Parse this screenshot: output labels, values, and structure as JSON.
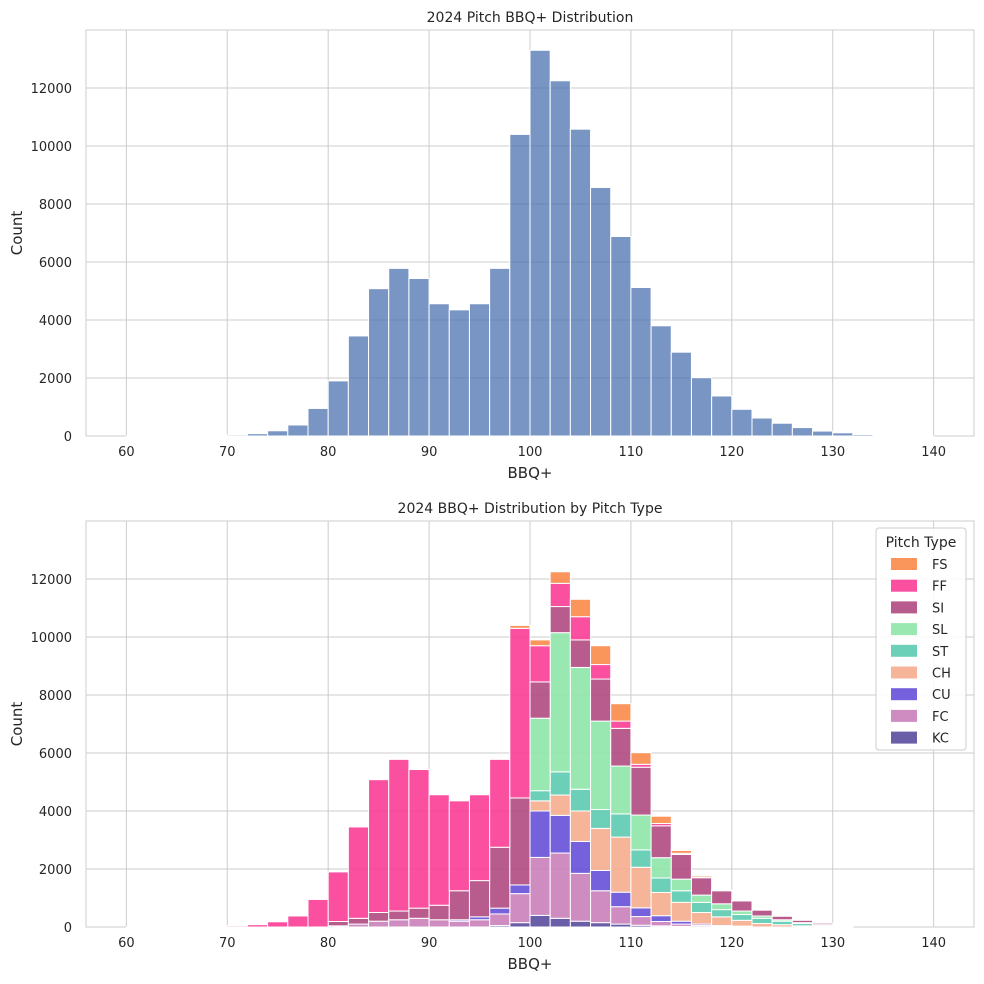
{
  "chart_data": [
    {
      "type": "bar",
      "title": "2024 Pitch BBQ+ Distribution",
      "xlabel": "BBQ+",
      "ylabel": "Count",
      "xlim": [
        56,
        144
      ],
      "ylim": [
        0,
        14000
      ],
      "xticks": [
        "60",
        "70",
        "80",
        "90",
        "100",
        "110",
        "120",
        "130",
        "140"
      ],
      "yticks": [
        "0",
        "2000",
        "4000",
        "6000",
        "8000",
        "10000",
        "12000"
      ],
      "grid": true,
      "color": "#4c72b0",
      "bin_edges": [
        60,
        62,
        64,
        66,
        68,
        70,
        72,
        74,
        76,
        78,
        80,
        82,
        84,
        86,
        88,
        90,
        92,
        94,
        96,
        98,
        100,
        102,
        104,
        106,
        108,
        110,
        112,
        114,
        116,
        118,
        120,
        122,
        124,
        126,
        128,
        130,
        132,
        134,
        136,
        138,
        140
      ],
      "values": [
        5,
        5,
        10,
        15,
        20,
        40,
        80,
        180,
        380,
        950,
        1900,
        3450,
        5080,
        5780,
        5430,
        4560,
        4350,
        4560,
        5780,
        10400,
        13300,
        12250,
        10580,
        8570,
        6880,
        5120,
        3800,
        2890,
        2010,
        1380,
        920,
        620,
        440,
        290,
        170,
        110,
        50,
        25,
        10,
        5
      ]
    },
    {
      "type": "bar",
      "stacked": true,
      "title": "2024 BBQ+ Distribution by Pitch Type",
      "xlabel": "BBQ+",
      "ylabel": "Count",
      "xlim": [
        56,
        144
      ],
      "ylim": [
        0,
        14000
      ],
      "xticks": [
        "60",
        "70",
        "80",
        "90",
        "100",
        "110",
        "120",
        "130",
        "140"
      ],
      "yticks": [
        "0",
        "2000",
        "4000",
        "6000",
        "8000",
        "10000",
        "12000"
      ],
      "grid": true,
      "legend": {
        "title": "Pitch Type",
        "placement": "top-right"
      },
      "bin_edges": [
        60,
        62,
        64,
        66,
        68,
        70,
        72,
        74,
        76,
        78,
        80,
        82,
        84,
        86,
        88,
        90,
        92,
        94,
        96,
        98,
        100,
        102,
        104,
        106,
        108,
        110,
        112,
        114,
        116,
        118,
        120,
        122,
        124,
        126,
        128,
        130,
        132,
        134,
        136,
        138,
        140
      ],
      "series": [
        {
          "name": "KC",
          "color": "#5b4d9e",
          "values": [
            0,
            0,
            0,
            0,
            0,
            0,
            0,
            0,
            0,
            0,
            0,
            0,
            0,
            0,
            0,
            0,
            0,
            0,
            50,
            150,
            400,
            300,
            200,
            150,
            100,
            60,
            40,
            20,
            10,
            0,
            0,
            0,
            0,
            0,
            0,
            0,
            0,
            0,
            0,
            0
          ]
        },
        {
          "name": "FC",
          "color": "#ca7fba",
          "values": [
            0,
            0,
            0,
            0,
            0,
            0,
            0,
            0,
            0,
            0,
            40,
            100,
            200,
            250,
            300,
            250,
            200,
            250,
            400,
            1000,
            2000,
            2250,
            1650,
            1100,
            600,
            300,
            150,
            80,
            40,
            20,
            10,
            0,
            0,
            0,
            0,
            0,
            0,
            0,
            0,
            0
          ]
        },
        {
          "name": "CU",
          "color": "#6650d8",
          "values": [
            0,
            0,
            0,
            0,
            0,
            0,
            0,
            0,
            0,
            0,
            0,
            0,
            0,
            0,
            0,
            0,
            50,
            100,
            200,
            300,
            1600,
            1300,
            1100,
            700,
            500,
            300,
            200,
            100,
            50,
            30,
            20,
            0,
            0,
            0,
            0,
            0,
            0,
            0,
            0,
            0
          ]
        },
        {
          "name": "CH",
          "color": "#f5ad8e",
          "values": [
            0,
            0,
            0,
            0,
            0,
            0,
            0,
            0,
            0,
            0,
            0,
            0,
            0,
            0,
            0,
            0,
            0,
            0,
            0,
            0,
            350,
            700,
            1050,
            1450,
            1900,
            1400,
            800,
            650,
            400,
            300,
            200,
            120,
            80,
            40,
            20,
            10,
            0,
            0,
            0,
            0
          ]
        },
        {
          "name": "ST",
          "color": "#5ccbb0",
          "values": [
            0,
            0,
            0,
            0,
            0,
            0,
            0,
            0,
            0,
            0,
            0,
            0,
            0,
            0,
            0,
            0,
            0,
            0,
            0,
            0,
            350,
            800,
            750,
            650,
            800,
            600,
            500,
            400,
            350,
            250,
            200,
            180,
            120,
            80,
            40,
            20,
            0,
            0,
            0,
            0
          ]
        },
        {
          "name": "SL",
          "color": "#8fe6a8",
          "values": [
            0,
            0,
            0,
            0,
            0,
            0,
            0,
            0,
            0,
            0,
            0,
            0,
            0,
            0,
            0,
            0,
            0,
            0,
            0,
            0,
            2500,
            4800,
            4200,
            3050,
            1650,
            1200,
            700,
            400,
            250,
            200,
            120,
            80,
            50,
            30,
            20,
            10,
            0,
            0,
            0,
            0
          ]
        },
        {
          "name": "SI",
          "color": "#b04a82",
          "values": [
            0,
            0,
            0,
            0,
            0,
            0,
            0,
            0,
            0,
            0,
            150,
            200,
            300,
            300,
            350,
            500,
            1000,
            1250,
            2100,
            3000,
            1250,
            900,
            950,
            1450,
            1300,
            1650,
            1100,
            850,
            600,
            450,
            350,
            200,
            120,
            80,
            50,
            30,
            0,
            0,
            0,
            0
          ]
        },
        {
          "name": "FF",
          "color": "#fb3c95",
          "values": [
            5,
            5,
            10,
            15,
            20,
            40,
            80,
            180,
            380,
            950,
            1710,
            3150,
            4580,
            5230,
            4780,
            3810,
            3100,
            2960,
            3030,
            5850,
            1250,
            800,
            800,
            500,
            250,
            100,
            80,
            40,
            20,
            0,
            0,
            0,
            0,
            0,
            0,
            0,
            0,
            0,
            0,
            0
          ]
        },
        {
          "name": "FS",
          "color": "#f98a4a",
          "values": [
            0,
            0,
            0,
            0,
            0,
            0,
            0,
            0,
            0,
            0,
            0,
            0,
            0,
            0,
            0,
            0,
            0,
            0,
            0,
            100,
            200,
            400,
            600,
            650,
            600,
            400,
            250,
            100,
            50,
            20,
            10,
            0,
            0,
            0,
            0,
            0,
            0,
            0,
            0,
            0
          ]
        }
      ]
    }
  ]
}
